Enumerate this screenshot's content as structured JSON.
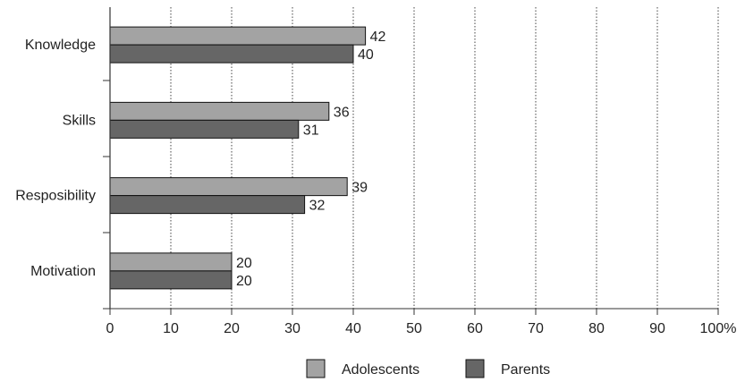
{
  "chart_data": {
    "type": "bar",
    "orientation": "horizontal",
    "title": "",
    "xlabel": "",
    "ylabel": "",
    "categories": [
      "Knowledge",
      "Skills",
      "Resposibility",
      "Motivation"
    ],
    "series": [
      {
        "name": "Adolescents",
        "values": [
          42,
          36,
          39,
          20
        ],
        "color": "#a3a3a3"
      },
      {
        "name": "Parents",
        "values": [
          40,
          31,
          32,
          20
        ],
        "color": "#666666"
      }
    ],
    "data_labels": [
      [
        "42",
        "36",
        "39",
        "20"
      ],
      [
        "40",
        "31",
        "32",
        "20"
      ]
    ],
    "xlim": [
      0,
      100
    ],
    "xticks": [
      "0",
      "10",
      "20",
      "30",
      "40",
      "50",
      "60",
      "70",
      "80",
      "90",
      "100%"
    ],
    "grid": "vertical-dotted",
    "legend": "bottom-center"
  }
}
